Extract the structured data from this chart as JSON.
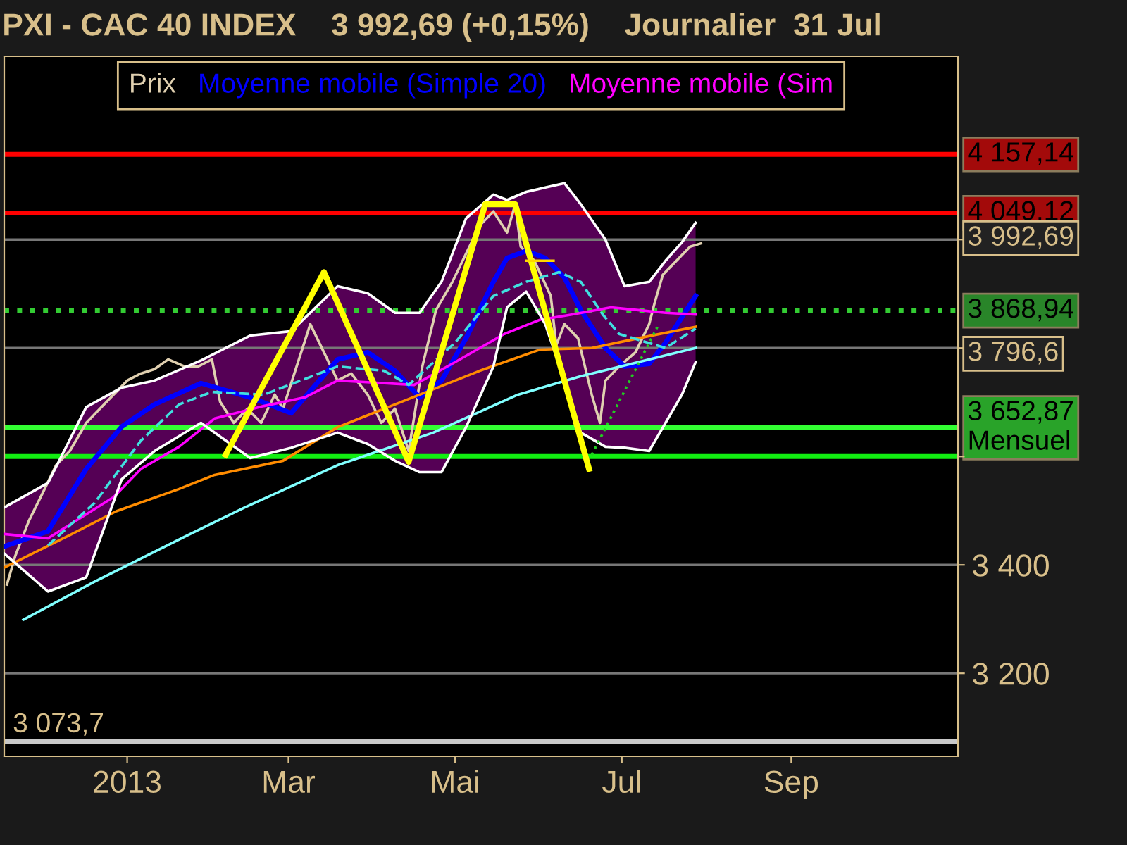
{
  "chart_data": {
    "type": "line",
    "title": "PXI - CAC 40 INDEX    3 992,69 (+0,15%)    Journalier  31 Jul",
    "xlim": [
      "2012-11-17",
      "2013-11-01"
    ],
    "ylim": [
      3047,
      4338
    ],
    "xticks": [
      {
        "value": "2013-01-01",
        "label": "2013"
      },
      {
        "value": "2013-03-01",
        "label": "Mar"
      },
      {
        "value": "2013-05-01",
        "label": "Mai"
      },
      {
        "value": "2013-07-01",
        "label": "Jul"
      },
      {
        "value": "2013-09-01",
        "label": "Sep"
      }
    ],
    "yticks": [
      {
        "value": 3200,
        "label": "3 200"
      },
      {
        "value": 3400,
        "label": "3 400"
      },
      {
        "value": 3600,
        "label": null
      },
      {
        "value": 3800,
        "label": null
      },
      {
        "value": 4000,
        "label": null
      }
    ],
    "grid": "y",
    "legend": "top",
    "series": [
      {
        "name": "Prix",
        "color": "#e0d0b0",
        "x": [
          "2012-11-18",
          "2012-11-21",
          "2012-11-26",
          "2012-12-01",
          "2012-12-06",
          "2012-12-11",
          "2012-12-17",
          "2012-12-22",
          "2012-12-27",
          "2013-01-01",
          "2013-01-06",
          "2013-01-11",
          "2013-01-16",
          "2013-01-22",
          "2013-01-27",
          "2013-02-01",
          "2013-02-04",
          "2013-02-09",
          "2013-02-14",
          "2013-02-19",
          "2013-02-24",
          "2013-02-27",
          "2013-03-04",
          "2013-03-09",
          "2013-03-14",
          "2013-03-19",
          "2013-03-24",
          "2013-03-30",
          "2013-04-04",
          "2013-04-09",
          "2013-04-14",
          "2013-04-19",
          "2013-04-24",
          "2013-04-30",
          "2013-05-05",
          "2013-05-10",
          "2013-05-15",
          "2013-05-20",
          "2013-05-23",
          "2013-05-25",
          "2013-05-30",
          "2013-06-05",
          "2013-06-07",
          "2013-06-10",
          "2013-06-15",
          "2013-06-20",
          "2013-06-23",
          "2013-06-25",
          "2013-06-30",
          "2013-07-06",
          "2013-07-11",
          "2013-07-13",
          "2013-07-16",
          "2013-07-21",
          "2013-07-26",
          "2013-07-30"
        ],
        "values": [
          3364,
          3416,
          3481,
          3532,
          3584,
          3610,
          3662,
          3688,
          3714,
          3740,
          3753,
          3761,
          3779,
          3766,
          3766,
          3779,
          3701,
          3662,
          3688,
          3662,
          3714,
          3688,
          3766,
          3844,
          3792,
          3740,
          3753,
          3714,
          3662,
          3688,
          3610,
          3766,
          3870,
          3922,
          3974,
          4026,
          4052,
          4013,
          4065,
          3987,
          3961,
          3896,
          3805,
          3844,
          3818,
          3714,
          3662,
          3740,
          3766,
          3792,
          3844,
          3883,
          3935,
          3961,
          3987,
          3993
        ]
      },
      {
        "name": "Moyenne mobile (Simple 20)",
        "color": "#0000ff",
        "x": [
          "2012-11-17",
          "2012-12-03",
          "2012-12-17",
          "2012-12-30",
          "2013-01-11",
          "2013-01-28",
          "2013-02-15",
          "2013-03-02",
          "2013-03-19",
          "2013-03-30",
          "2013-04-09",
          "2013-04-18",
          "2013-04-26",
          "2013-05-05",
          "2013-05-15",
          "2013-05-20",
          "2013-05-27",
          "2013-06-03",
          "2013-06-10",
          "2013-06-16",
          "2013-06-25",
          "2013-07-02",
          "2013-07-11",
          "2013-07-17",
          "2013-07-23",
          "2013-07-28"
        ],
        "values": [
          3434,
          3462,
          3577,
          3655,
          3696,
          3735,
          3709,
          3680,
          3779,
          3792,
          3758,
          3709,
          3740,
          3818,
          3922,
          3966,
          3979,
          3966,
          3930,
          3870,
          3800,
          3766,
          3771,
          3810,
          3857,
          3896
        ],
        "upper": [
          3506,
          3551,
          3691,
          3727,
          3740,
          3777,
          3823,
          3831,
          3914,
          3901,
          3865,
          3865,
          3922,
          4039,
          4083,
          4073,
          4088,
          4096,
          4104,
          4065,
          4000,
          3914,
          3922,
          3961,
          3995,
          4031
        ],
        "lower": [
          3421,
          3351,
          3377,
          3558,
          3610,
          3662,
          3597,
          3616,
          3644,
          3623,
          3592,
          3571,
          3571,
          3654,
          3766,
          3875,
          3904,
          3844,
          3740,
          3644,
          3618,
          3616,
          3610,
          3662,
          3714,
          3774
        ]
      },
      {
        "name": "Moyenne mobile (Sim",
        "color": "#ff00ff",
        "x": [
          "2012-11-17",
          "2012-12-03",
          "2012-12-27",
          "2013-01-06",
          "2013-01-20",
          "2013-02-02",
          "2013-02-20",
          "2013-03-07",
          "2013-03-19",
          "2013-04-16",
          "2013-05-01",
          "2013-05-19",
          "2013-06-01",
          "2013-06-13",
          "2013-06-27",
          "2013-07-07",
          "2013-07-17",
          "2013-07-28"
        ],
        "values": [
          3457,
          3449,
          3525,
          3577,
          3618,
          3670,
          3693,
          3709,
          3740,
          3732,
          3774,
          3826,
          3852,
          3862,
          3875,
          3870,
          3865,
          3862
        ]
      },
      {
        "color": "#ff8c00",
        "x": [
          "2012-11-17",
          "2012-12-11",
          "2012-12-28",
          "2013-01-20",
          "2013-02-02",
          "2013-02-27",
          "2013-03-19",
          "2013-04-14",
          "2013-05-10",
          "2013-06-01",
          "2013-06-20",
          "2013-07-07",
          "2013-07-28"
        ],
        "values": [
          3395,
          3455,
          3499,
          3540,
          3566,
          3592,
          3654,
          3706,
          3758,
          3797,
          3800,
          3818,
          3839
        ]
      },
      {
        "color": "#80ffff",
        "x": [
          "2012-11-24",
          "2012-12-20",
          "2013-01-20",
          "2013-02-13",
          "2013-03-19",
          "2013-04-23",
          "2013-05-24",
          "2013-06-16",
          "2013-07-07",
          "2013-07-28"
        ],
        "values": [
          3299,
          3369,
          3447,
          3506,
          3584,
          3644,
          3714,
          3748,
          3774,
          3800
        ]
      },
      {
        "color": "#40e0e0",
        "line_style": "dashed",
        "x": [
          "2012-12-03",
          "2012-12-20",
          "2013-01-06",
          "2013-01-20",
          "2013-02-01",
          "2013-02-20",
          "2013-03-19",
          "2013-04-05",
          "2013-04-14",
          "2013-05-01",
          "2013-05-15",
          "2013-05-27",
          "2013-06-08",
          "2013-06-16",
          "2013-06-24",
          "2013-06-30",
          "2013-07-17",
          "2013-07-28"
        ],
        "values": [
          3436,
          3514,
          3629,
          3696,
          3719,
          3714,
          3766,
          3758,
          3732,
          3810,
          3896,
          3922,
          3940,
          3922,
          3862,
          3826,
          3800,
          3836
        ]
      },
      {
        "color": "#ffffff",
        "x": [
          "2012-11-17",
          "2012-12-03",
          "2012-12-17",
          "2012-12-30",
          "2013-01-11",
          "2013-01-28",
          "2013-02-15",
          "2013-03-02",
          "2013-03-19",
          "2013-03-30",
          "2013-04-09",
          "2013-04-18",
          "2013-04-26",
          "2013-05-05",
          "2013-05-15",
          "2013-05-20",
          "2013-05-27",
          "2013-06-03",
          "2013-06-10",
          "2013-06-16",
          "2013-06-25",
          "2013-07-02",
          "2013-07-11",
          "2013-07-17",
          "2013-07-23",
          "2013-07-28"
        ],
        "values": [
          3506,
          3551,
          3691,
          3727,
          3740,
          3777,
          3823,
          3831,
          3914,
          3901,
          3865,
          3865,
          3922,
          4039,
          4083,
          4073,
          4088,
          4096,
          4104,
          4065,
          4000,
          3914,
          3922,
          3961,
          3995,
          4031
        ]
      },
      {
        "color": "#ffffff",
        "x": [
          "2012-11-17",
          "2012-12-03",
          "2012-12-17",
          "2012-12-30",
          "2013-01-11",
          "2013-01-28",
          "2013-02-15",
          "2013-03-02",
          "2013-03-19",
          "2013-03-30",
          "2013-04-09",
          "2013-04-18",
          "2013-04-26",
          "2013-05-05",
          "2013-05-15",
          "2013-05-20",
          "2013-05-27",
          "2013-06-03",
          "2013-06-10",
          "2013-06-16",
          "2013-06-25",
          "2013-07-02",
          "2013-07-11",
          "2013-07-17",
          "2013-07-23",
          "2013-07-28"
        ],
        "values": [
          3421,
          3351,
          3377,
          3558,
          3610,
          3662,
          3597,
          3616,
          3644,
          3623,
          3592,
          3571,
          3571,
          3654,
          3766,
          3875,
          3904,
          3844,
          3740,
          3644,
          3618,
          3616,
          3610,
          3662,
          3714,
          3774
        ]
      },
      {
        "color": "#ffff00",
        "x": [
          "2013-02-06",
          "2013-03-14",
          "2013-04-14",
          "2013-05-12",
          "2013-05-23",
          "2013-06-19"
        ],
        "values": [
          3603,
          3940,
          3590,
          4065,
          4065,
          3577
        ]
      },
      {
        "color": "#ffd700",
        "x": [
          "2013-05-27",
          "2013-06-06"
        ],
        "values": [
          3961,
          3961
        ]
      },
      {
        "color": "#22cc22",
        "line_style": "dotted",
        "x": [
          "2013-06-20",
          "2013-07-14"
        ],
        "values": [
          3603,
          3839
        ]
      }
    ],
    "ref_lines": [
      {
        "axis": "y",
        "value": 4157.14,
        "label": "4 157,14",
        "color": "#ff0000"
      },
      {
        "axis": "y",
        "value": 4049.12,
        "label": "4 049,12",
        "color": "#ff0000"
      },
      {
        "axis": "y",
        "value": 3868.94,
        "label": "3 868,94",
        "color": "#33cc33",
        "line_style": "dotted"
      },
      {
        "axis": "y",
        "value": 3652.87,
        "label": "3 652,87\nMensuel",
        "color": "#33ff33"
      },
      {
        "axis": "y",
        "value": 3600,
        "color": "#11ee11"
      },
      {
        "axis": "y",
        "value": 3073.7,
        "color": "#c8c8c8"
      }
    ],
    "annotations": [
      "3 992,69",
      "3 796,6",
      {
        "text": "3 073,7",
        "x": "2012-11-18",
        "y": 3073.7
      }
    ]
  }
}
